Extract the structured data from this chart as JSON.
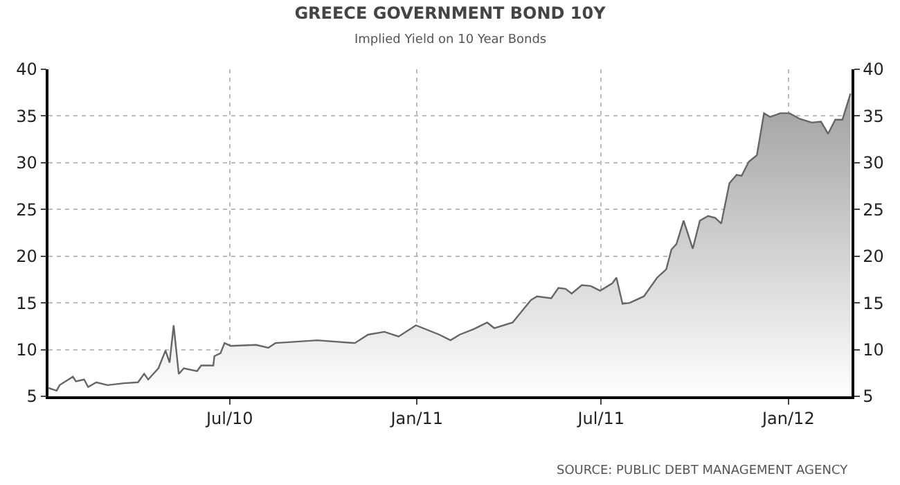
{
  "chart_data": {
    "type": "area",
    "title": "GREECE GOVERNMENT BOND 10Y",
    "subtitle": "Implied Yield on 10 Year Bonds",
    "annotations": [
      "SOURCE: PUBLIC DEBT MANAGEMENT AGENCY"
    ],
    "x": [
      "2010-01-04",
      "2010-01-12",
      "2010-01-15",
      "2010-01-28",
      "2010-01-31",
      "2010-02-08",
      "2010-02-12",
      "2010-02-20",
      "2010-03-03",
      "2010-03-19",
      "2010-04-02",
      "2010-04-08",
      "2010-04-12",
      "2010-04-22",
      "2010-04-29",
      "2010-05-03",
      "2010-05-07",
      "2010-05-12",
      "2010-05-17",
      "2010-05-30",
      "2010-06-03",
      "2010-06-15",
      "2010-06-16",
      "2010-06-22",
      "2010-06-26",
      "2010-07-02",
      "2010-07-27",
      "2010-08-08",
      "2010-08-15",
      "2010-09-25",
      "2010-11-01",
      "2010-11-14",
      "2010-11-30",
      "2010-12-14",
      "2010-12-31",
      "2011-01-23",
      "2011-02-03",
      "2011-02-12",
      "2011-02-26",
      "2011-03-11",
      "2011-03-18",
      "2011-04-05",
      "2011-04-23",
      "2011-04-29",
      "2011-05-13",
      "2011-05-20",
      "2011-05-27",
      "2011-06-02",
      "2011-06-12",
      "2011-06-21",
      "2011-06-30",
      "2011-07-12",
      "2011-07-16",
      "2011-07-22",
      "2011-07-29",
      "2011-08-12",
      "2011-08-25",
      "2011-09-03",
      "2011-09-08",
      "2011-09-13",
      "2011-09-20",
      "2011-09-29",
      "2011-10-06",
      "2011-10-14",
      "2011-10-21",
      "2011-10-27",
      "2011-11-04",
      "2011-11-11",
      "2011-11-16",
      "2011-11-23",
      "2011-12-01",
      "2011-12-08",
      "2011-12-14",
      "2011-12-24",
      "2012-01-02",
      "2012-01-12",
      "2012-01-24",
      "2012-02-02",
      "2012-02-09",
      "2012-02-16",
      "2012-02-23",
      "2012-03-02"
    ],
    "series": [
      {
        "color": "#666666",
        "values": [
          5.9,
          5.6,
          6.2,
          7.1,
          6.6,
          6.8,
          6.0,
          6.5,
          6.2,
          6.4,
          6.5,
          7.4,
          6.8,
          8.0,
          9.9,
          8.6,
          12.6,
          7.4,
          8.0,
          7.7,
          8.3,
          8.3,
          9.3,
          9.6,
          10.7,
          10.4,
          10.5,
          10.2,
          10.7,
          11.0,
          10.7,
          11.6,
          11.9,
          11.4,
          12.6,
          11.6,
          11.0,
          11.6,
          12.2,
          12.9,
          12.3,
          12.9,
          15.3,
          15.7,
          15.5,
          16.6,
          16.5,
          16.0,
          16.9,
          16.8,
          16.3,
          17.1,
          17.7,
          14.9,
          15.0,
          15.7,
          17.7,
          18.6,
          20.7,
          21.3,
          23.8,
          20.8,
          23.8,
          24.3,
          24.1,
          23.5,
          27.8,
          28.7,
          28.6,
          30.1,
          30.8,
          35.3,
          34.9,
          35.3,
          35.3,
          34.7,
          34.3,
          34.4,
          33.1,
          34.6,
          34.6,
          37.4
        ]
      }
    ],
    "xlim": [
      "2010-01-04",
      "2012-03-03"
    ],
    "xticks": [
      {
        "value": "2010-07-01",
        "label": "Jul/10"
      },
      {
        "value": "2011-01-01",
        "label": "Jan/11"
      },
      {
        "value": "2011-07-01",
        "label": "Jul/11"
      },
      {
        "value": "2012-01-01",
        "label": "Jan/12"
      }
    ],
    "ylim": [
      5,
      40
    ],
    "yticks": [
      5,
      10,
      15,
      20,
      25,
      30,
      35,
      40
    ],
    "y2lim": [
      5,
      40
    ],
    "y2ticks": [
      5,
      10,
      15,
      20,
      25,
      30,
      35,
      40
    ],
    "grid": true
  }
}
